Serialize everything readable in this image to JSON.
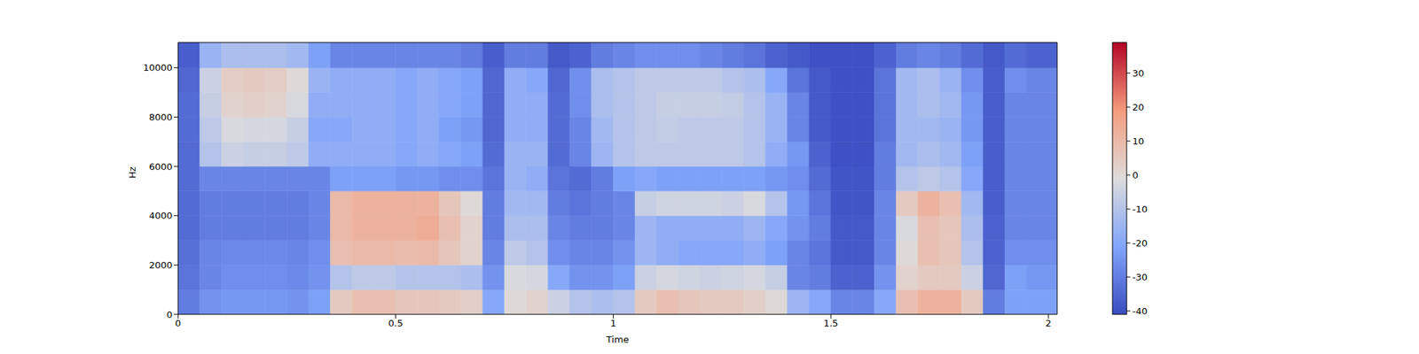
{
  "chart_data": {
    "type": "heatmap",
    "xlabel": "Time",
    "ylabel": "Hz",
    "xlim": [
      0,
      2.02
    ],
    "xticks": [
      0,
      0.5,
      1,
      1.5,
      2
    ],
    "ylim": [
      0,
      11025
    ],
    "yticks": [
      0,
      2000,
      4000,
      6000,
      8000,
      10000
    ],
    "x": [
      0,
      0.05,
      0.1,
      0.15,
      0.2,
      0.25,
      0.3,
      0.35,
      0.4,
      0.45,
      0.5,
      0.55,
      0.6,
      0.65,
      0.7,
      0.75,
      0.8,
      0.85,
      0.9,
      0.95,
      1.0,
      1.05,
      1.1,
      1.15,
      1.2,
      1.25,
      1.3,
      1.35,
      1.4,
      1.45,
      1.5,
      1.55,
      1.6,
      1.65,
      1.7,
      1.75,
      1.8,
      1.85,
      1.9,
      1.95
    ],
    "y": [
      0,
      1000,
      2000,
      3000,
      4000,
      5000,
      6000,
      7000,
      8000,
      9000,
      10000
    ],
    "cells": [
      [
        -30,
        -25,
        -24,
        -24,
        -24,
        -25,
        -22,
        5,
        8,
        8,
        6,
        6,
        5,
        3,
        -20,
        0,
        2,
        -5,
        -10,
        -12,
        -10,
        5,
        8,
        6,
        5,
        5,
        3,
        0,
        -15,
        -20,
        -28,
        -28,
        -20,
        8,
        12,
        12,
        5,
        -30,
        -22,
        -22
      ],
      [
        -32,
        -28,
        -26,
        -26,
        -26,
        -27,
        -25,
        -10,
        -8,
        -8,
        -10,
        -10,
        -10,
        -12,
        -25,
        -2,
        -3,
        -20,
        -25,
        -25,
        -22,
        -5,
        -3,
        -4,
        -5,
        -4,
        -3,
        -6,
        -28,
        -30,
        -36,
        -36,
        -25,
        2,
        5,
        5,
        -5,
        -35,
        -22,
        -24
      ],
      [
        -33,
        -28,
        -27,
        -27,
        -27,
        -28,
        -26,
        8,
        10,
        10,
        9,
        10,
        6,
        2,
        -28,
        -8,
        -10,
        -26,
        -28,
        -28,
        -25,
        -15,
        -18,
        -20,
        -20,
        -20,
        -18,
        -22,
        -28,
        -32,
        -38,
        -38,
        -28,
        0,
        8,
        6,
        -10,
        -36,
        -26,
        -26
      ],
      [
        -34,
        -30,
        -30,
        -30,
        -30,
        -30,
        -28,
        10,
        12,
        12,
        12,
        14,
        8,
        2,
        -30,
        -12,
        -12,
        -28,
        -30,
        -30,
        -28,
        -15,
        -18,
        -18,
        -18,
        -18,
        -15,
        -20,
        -25,
        -30,
        -38,
        -38,
        -28,
        -2,
        8,
        6,
        -12,
        -36,
        -28,
        -28
      ],
      [
        -34,
        -30,
        -30,
        -30,
        -30,
        -30,
        -28,
        10,
        12,
        12,
        12,
        12,
        6,
        0,
        -30,
        -14,
        -14,
        -30,
        -32,
        -30,
        -28,
        -6,
        -4,
        -4,
        -4,
        -5,
        -2,
        -10,
        -24,
        -32,
        -39,
        -39,
        -28,
        5,
        12,
        8,
        -14,
        -37,
        -28,
        -28
      ],
      [
        -34,
        -28,
        -28,
        -28,
        -28,
        -28,
        -28,
        -22,
        -22,
        -22,
        -24,
        -24,
        -26,
        -26,
        -32,
        -16,
        -18,
        -32,
        -34,
        -30,
        -22,
        -20,
        -22,
        -22,
        -22,
        -22,
        -22,
        -24,
        -26,
        -34,
        -39,
        -39,
        -30,
        -10,
        -8,
        -10,
        -20,
        -37,
        -28,
        -28
      ],
      [
        -34,
        -10,
        -5,
        -6,
        -6,
        -8,
        -18,
        -18,
        -18,
        -18,
        -20,
        -18,
        -20,
        -22,
        -34,
        -16,
        -16,
        -34,
        -28,
        -15,
        -10,
        -8,
        -8,
        -8,
        -8,
        -8,
        -10,
        -18,
        -24,
        -36,
        -40,
        -40,
        -30,
        -14,
        -12,
        -14,
        -22,
        -37,
        -28,
        -28
      ],
      [
        -34,
        -8,
        -2,
        -3,
        -3,
        -6,
        -20,
        -20,
        -18,
        -18,
        -20,
        -18,
        -22,
        -24,
        -35,
        -18,
        -18,
        -34,
        -28,
        -14,
        -10,
        -8,
        -7,
        -8,
        -8,
        -8,
        -10,
        -16,
        -28,
        -38,
        -40,
        -40,
        -32,
        -14,
        -14,
        -16,
        -24,
        -37,
        -28,
        -28
      ],
      [
        -34,
        -6,
        2,
        3,
        2,
        -2,
        -18,
        -18,
        -18,
        -18,
        -20,
        -18,
        -20,
        -22,
        -35,
        -18,
        -18,
        -34,
        -26,
        -12,
        -10,
        -8,
        -6,
        -6,
        -6,
        -7,
        -10,
        -16,
        -28,
        -38,
        -40,
        -40,
        -32,
        -14,
        -12,
        -14,
        -24,
        -37,
        -28,
        -28
      ],
      [
        -35,
        -5,
        4,
        5,
        4,
        0,
        -16,
        -18,
        -18,
        -18,
        -20,
        -18,
        -20,
        -22,
        -35,
        -18,
        -20,
        -35,
        -26,
        -12,
        -10,
        -8,
        -8,
        -8,
        -8,
        -10,
        -12,
        -20,
        -32,
        -38,
        -40,
        -40,
        -32,
        -14,
        -12,
        -16,
        -26,
        -37,
        -26,
        -28
      ],
      [
        -37,
        -16,
        -12,
        -12,
        -12,
        -14,
        -22,
        -28,
        -28,
        -28,
        -28,
        -28,
        -28,
        -30,
        -37,
        -30,
        -30,
        -38,
        -36,
        -30,
        -28,
        -26,
        -26,
        -26,
        -28,
        -30,
        -32,
        -36,
        -38,
        -40,
        -40,
        -40,
        -36,
        -30,
        -28,
        -30,
        -34,
        -38,
        -34,
        -36
      ]
    ],
    "colorbar_lim": [
      -41,
      39
    ],
    "colorbar_ticks": [
      -40,
      -30,
      -20,
      -10,
      0,
      10,
      20,
      30
    ]
  }
}
